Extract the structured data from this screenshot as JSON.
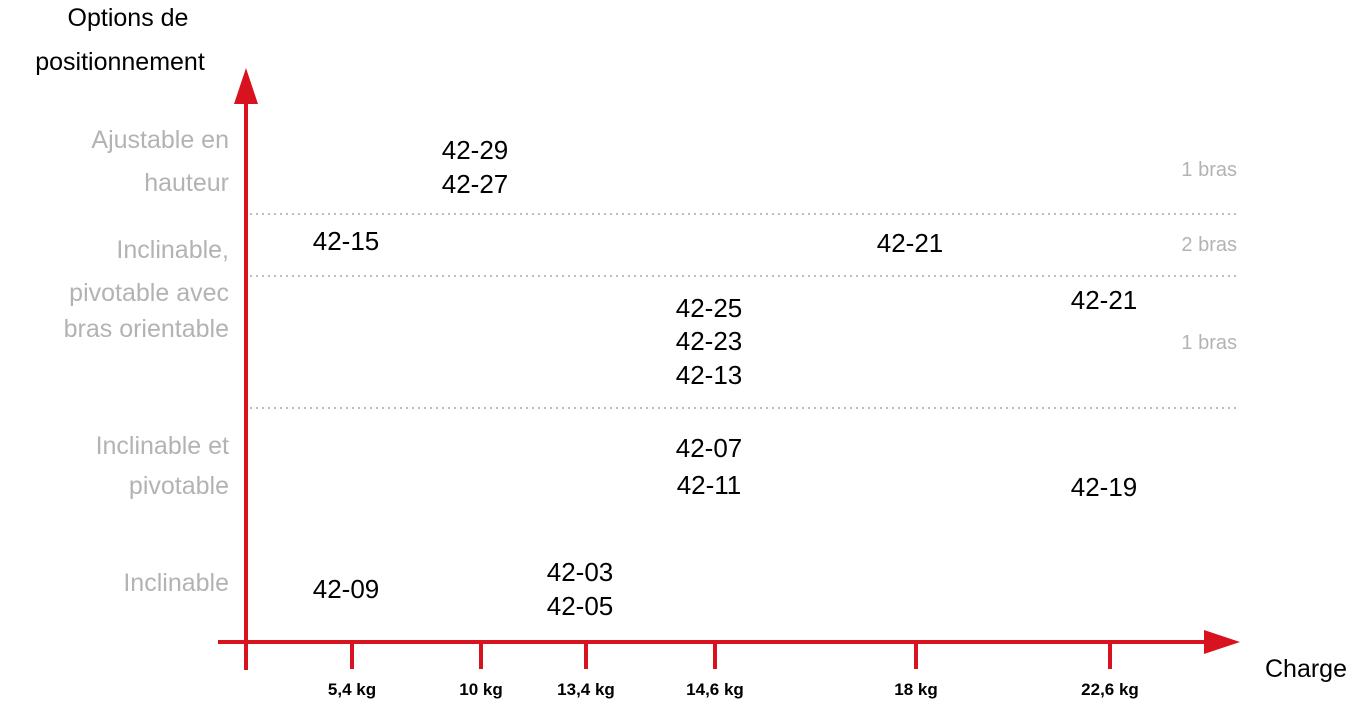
{
  "colors": {
    "axis": "#d9121f",
    "category_label": "#b3b3b3",
    "arm_note": "#b3b3b3",
    "model_label": "#000000",
    "tick_label": "#000000",
    "divider": "#bdbdbd"
  },
  "chart_data": {
    "type": "table",
    "ylabel": [
      "Options de",
      "positionnement"
    ],
    "xlabel": "Charge",
    "x_ticks": [
      "5,4 kg",
      "10 kg",
      "13,4 kg",
      "14,6 kg",
      "18 kg",
      "22,6 kg"
    ],
    "categories": [
      {
        "lines": [
          "Ajustable en",
          "hauteur"
        ]
      },
      {
        "lines": [
          "Inclinable,",
          "pivotable avec",
          "bras orientable"
        ]
      },
      {
        "lines": [
          "Inclinable et",
          "pivotable"
        ]
      },
      {
        "lines": [
          "Inclinable"
        ]
      }
    ],
    "arm_notes": [
      "1 bras",
      "2 bras",
      "1 bras"
    ],
    "models": [
      {
        "label": "42-29",
        "x": "10 kg"
      },
      {
        "label": "42-27",
        "x": "10 kg"
      },
      {
        "label": "42-15",
        "x": "5,4 kg"
      },
      {
        "label": "42-21",
        "x": "18 kg"
      },
      {
        "label": "42-21",
        "x": "22,6 kg"
      },
      {
        "label": "42-25",
        "x": "14,6 kg"
      },
      {
        "label": "42-23",
        "x": "14,6 kg"
      },
      {
        "label": "42-13",
        "x": "14,6 kg"
      },
      {
        "label": "42-07",
        "x": "14,6 kg"
      },
      {
        "label": "42-11",
        "x": "14,6 kg"
      },
      {
        "label": "42-19",
        "x": "22,6 kg"
      },
      {
        "label": "42-09",
        "x": "5,4 kg"
      },
      {
        "label": "42-03",
        "x": "13,4 kg"
      },
      {
        "label": "42-05",
        "x": "13,4 kg"
      }
    ]
  }
}
